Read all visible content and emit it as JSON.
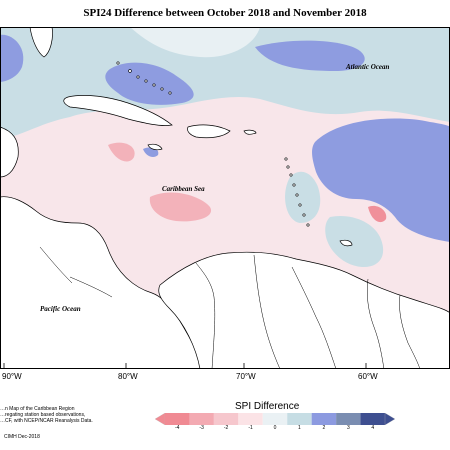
{
  "title": "SPI24 Difference between October 2018 and November 2018",
  "map": {
    "labels": {
      "atlantic": "Atlantic Ocean",
      "caribbean": "Caribbean Sea",
      "pacific": "Pacific Ocean"
    },
    "longitude_ticks": [
      "90°W",
      "80°W",
      "70°W",
      "60°W"
    ]
  },
  "legend": {
    "title": "SPI Difference",
    "ticks": [
      "-4",
      "-3",
      "-2",
      "-1",
      "0",
      "1",
      "2",
      "3",
      "4"
    ],
    "colors": [
      "#f08a93",
      "#f3aab2",
      "#f6c7cd",
      "#fbe3e6",
      "#eaf1f4",
      "#c6dde4",
      "#8c9ae0",
      "#7a8db1",
      "#3e4f90"
    ]
  },
  "notes": {
    "line1": "…n Map of the Caribbean Region",
    "line2": "…regating station based observations,",
    "line3": "…CF, with NCEP/NCAR Reanalysis Data.",
    "credit": "CIMH Dec-2018"
  }
}
